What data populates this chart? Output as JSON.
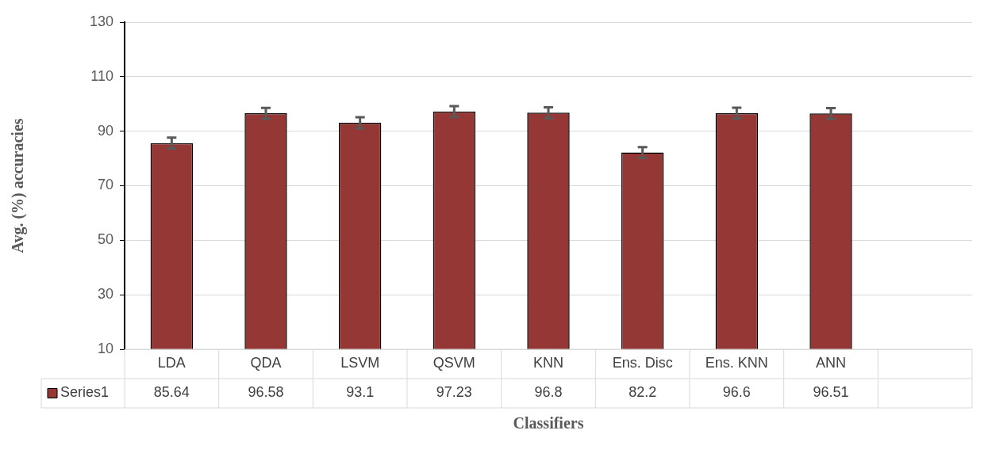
{
  "chart_data": {
    "type": "bar",
    "xlabel": "Classifiers",
    "ylabel": "Avg. (%) accuracies",
    "categories": [
      "LDA",
      "QDA",
      "LSVM",
      "QSVM",
      "KNN",
      "Ens. Disc",
      "Ens. KNN",
      "ANN",
      null
    ],
    "series": [
      {
        "name": "Series1",
        "color": "#953735",
        "values": [
          85.64,
          96.58,
          93.1,
          97.23,
          96.8,
          82.2,
          96.6,
          96.51,
          null
        ],
        "errors": [
          2,
          2,
          2,
          2,
          2,
          2,
          2,
          2,
          null
        ]
      }
    ],
    "ylim": [
      10,
      130
    ],
    "yticks": [
      10,
      30,
      50,
      70,
      90,
      110,
      130
    ],
    "grid": "y",
    "data_labels": true,
    "legend": "bottom"
  }
}
